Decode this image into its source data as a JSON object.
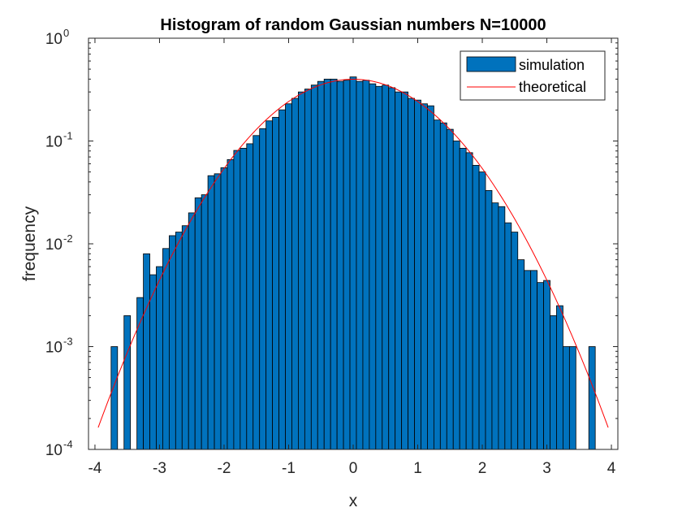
{
  "chart_data": {
    "type": "bar",
    "title": "Histogram of random Gaussian numbers N=10000",
    "xlabel": "x",
    "ylabel": "frequency",
    "xlim": [
      -4.1,
      4.1
    ],
    "ylim": [
      0.0001,
      1
    ],
    "yscale": "log",
    "grid": false,
    "legend_position": "top-right",
    "bar_color": "#0072BD",
    "bar_edge_color": "#000000",
    "curve_color": "#FF0000",
    "x_ticks": [
      -4,
      -3,
      -2,
      -1,
      0,
      1,
      2,
      3,
      4
    ],
    "x_tick_labels": [
      "-4",
      "-3",
      "-2",
      "-1",
      "0",
      "1",
      "2",
      "3",
      "4"
    ],
    "y_ticks": [
      0.0001,
      0.001,
      0.01,
      0.1,
      1
    ],
    "y_tick_labels": [
      {
        "base": "10",
        "exp": "-4"
      },
      {
        "base": "10",
        "exp": "-3"
      },
      {
        "base": "10",
        "exp": "-2"
      },
      {
        "base": "10",
        "exp": "-1"
      },
      {
        "base": "10",
        "exp": "0"
      }
    ],
    "bin_width": 0.1,
    "series": [
      {
        "name": "simulation",
        "kind": "histogram",
        "bin_centers": [
          -3.7,
          -3.6,
          -3.5,
          -3.4,
          -3.3,
          -3.2,
          -3.1,
          -3.0,
          -2.9,
          -2.8,
          -2.7,
          -2.6,
          -2.5,
          -2.4,
          -2.3,
          -2.2,
          -2.1,
          -2.0,
          -1.9,
          -1.8,
          -1.7,
          -1.6,
          -1.5,
          -1.4,
          -1.3,
          -1.2,
          -1.1,
          -1.0,
          -0.9,
          -0.8,
          -0.7,
          -0.6,
          -0.5,
          -0.4,
          -0.3,
          -0.2,
          -0.1,
          0.0,
          0.1,
          0.2,
          0.3,
          0.4,
          0.5,
          0.6,
          0.7,
          0.8,
          0.9,
          1.0,
          1.1,
          1.2,
          1.3,
          1.4,
          1.5,
          1.6,
          1.7,
          1.8,
          1.9,
          2.0,
          2.1,
          2.2,
          2.3,
          2.4,
          2.5,
          2.6,
          2.7,
          2.8,
          2.9,
          3.0,
          3.1,
          3.2,
          3.3,
          3.4,
          3.5,
          3.6,
          3.7
        ],
        "values": [
          0.001,
          0,
          0.002,
          0,
          0.003,
          0.008,
          0.005,
          0.006,
          0.009,
          0.012,
          0.013,
          0.015,
          0.02,
          0.028,
          0.03,
          0.046,
          0.048,
          0.055,
          0.066,
          0.081,
          0.085,
          0.094,
          0.113,
          0.132,
          0.157,
          0.17,
          0.201,
          0.23,
          0.26,
          0.3,
          0.32,
          0.35,
          0.38,
          0.4,
          0.4,
          0.38,
          0.39,
          0.42,
          0.38,
          0.39,
          0.36,
          0.34,
          0.35,
          0.33,
          0.3,
          0.3,
          0.26,
          0.25,
          0.23,
          0.22,
          0.16,
          0.15,
          0.13,
          0.1,
          0.085,
          0.077,
          0.058,
          0.05,
          0.033,
          0.025,
          0.023,
          0.016,
          0.013,
          0.007,
          0.0055,
          0.0055,
          0.0042,
          0.0044,
          0.002,
          0.0025,
          0.001,
          0.001,
          0,
          0,
          0.001
        ]
      },
      {
        "name": "theoretical",
        "kind": "line",
        "function": "normal_pdf",
        "mean": 0,
        "std": 1,
        "x_range": [
          -3.95,
          3.95
        ]
      }
    ]
  }
}
